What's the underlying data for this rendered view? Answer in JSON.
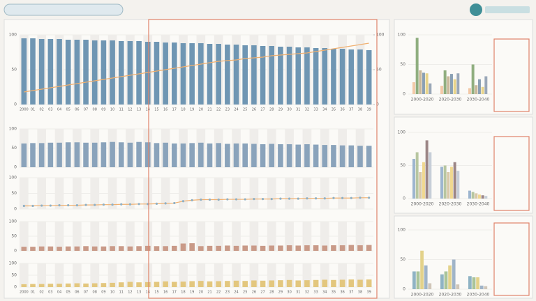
{
  "chart_data": [
    {
      "type": "bar",
      "categories": [
        "2000",
        "01",
        "02",
        "03",
        "04",
        "05",
        "06",
        "07",
        "08",
        "09",
        "10",
        "11",
        "12",
        "13",
        "14",
        "15",
        "16",
        "17",
        "18",
        "19",
        "20",
        "21",
        "22",
        "23",
        "24",
        "25",
        "26",
        "27",
        "28",
        "29",
        "30",
        "31",
        "32",
        "33",
        "34",
        "35",
        "36",
        "37",
        "38",
        "39"
      ],
      "ylim": [
        0,
        100
      ],
      "yticks": [
        0,
        50,
        100
      ],
      "y2lim": [
        0,
        100
      ],
      "y2ticks": [
        0,
        50,
        100
      ],
      "series": [
        {
          "color": "#6f96b3",
          "values": [
            95,
            95,
            94,
            94,
            94,
            93,
            93,
            93,
            92,
            92,
            92,
            91,
            91,
            91,
            90,
            90,
            89,
            89,
            88,
            88,
            88,
            87,
            87,
            86,
            86,
            85,
            85,
            84,
            84,
            83,
            83,
            82,
            82,
            81,
            81,
            80,
            80,
            79,
            79,
            78
          ]
        },
        {
          "color": "#f0b070",
          "axis": "y2",
          "values": [
            18,
            20,
            22,
            24,
            26,
            28,
            30,
            32,
            34,
            36,
            38,
            40,
            42,
            44,
            46,
            48,
            50,
            52,
            54,
            56,
            58,
            60,
            62,
            63,
            64,
            66,
            67,
            68,
            70,
            71,
            72,
            73,
            74,
            76,
            78,
            80,
            82,
            84,
            86,
            88
          ]
        }
      ]
    },
    {
      "type": "bar",
      "ylim": [
        0,
        100
      ],
      "yticks": [
        0,
        50,
        100
      ],
      "series": [
        {
          "color": "#8aa3bb",
          "values": [
            62,
            63,
            63,
            64,
            64,
            65,
            65,
            64,
            64,
            65,
            66,
            65,
            64,
            66,
            65,
            63,
            64,
            62,
            62,
            63,
            64,
            62,
            63,
            61,
            62,
            62,
            61,
            60,
            61,
            60,
            60,
            59,
            60,
            59,
            58,
            58,
            57,
            57,
            56,
            56
          ]
        }
      ]
    },
    {
      "type": "line",
      "ylim": [
        0,
        100
      ],
      "yticks": [
        0,
        50,
        100
      ],
      "series": [
        {
          "color": "#f0b070",
          "values": [
            10,
            10,
            11,
            11,
            12,
            12,
            12,
            13,
            13,
            14,
            14,
            15,
            15,
            16,
            16,
            17,
            18,
            19,
            25,
            28,
            30,
            30,
            30,
            31,
            31,
            31,
            32,
            32,
            32,
            33,
            33,
            33,
            34,
            34,
            34,
            35,
            35,
            35,
            36,
            36
          ]
        }
      ]
    },
    {
      "type": "bar",
      "ylim": [
        0,
        100
      ],
      "yticks": [
        0,
        50,
        100
      ],
      "series": [
        {
          "color": "#c99a88",
          "values": [
            14,
            14,
            15,
            15,
            14,
            15,
            15,
            16,
            15,
            15,
            16,
            16,
            15,
            16,
            17,
            16,
            16,
            17,
            25,
            26,
            16,
            17,
            17,
            18,
            17,
            18,
            18,
            17,
            18,
            18,
            19,
            18,
            19,
            19,
            18,
            19,
            19,
            20,
            19,
            20
          ]
        }
      ]
    },
    {
      "type": "bar",
      "categories": [
        "2000",
        "01",
        "02",
        "03",
        "04",
        "05",
        "06",
        "07",
        "08",
        "09",
        "10",
        "11",
        "12",
        "13",
        "14",
        "15",
        "16",
        "17",
        "18",
        "19",
        "20",
        "21",
        "22",
        "23",
        "24",
        "25",
        "26",
        "27",
        "28",
        "29",
        "30",
        "31",
        "32",
        "33",
        "34",
        "35",
        "36",
        "37",
        "38",
        "39"
      ],
      "ylim": [
        0,
        100
      ],
      "yticks": [
        0,
        50,
        100
      ],
      "series": [
        {
          "color": "#e3c77e",
          "values": [
            12,
            13,
            13,
            14,
            14,
            15,
            16,
            15,
            16,
            17,
            18,
            20,
            22,
            20,
            21,
            22,
            24,
            22,
            23,
            25,
            26,
            24,
            25,
            26,
            27,
            26,
            28,
            27,
            28,
            29,
            30,
            28,
            29,
            30,
            31,
            30,
            31,
            32,
            31,
            32
          ]
        }
      ]
    },
    {
      "type": "grouped",
      "categories": [
        "2000-2020",
        "2020-2030",
        "2030-2040"
      ],
      "ylim": [
        0,
        100
      ],
      "yticks": [
        0,
        50,
        100
      ],
      "series": [
        {
          "color": "#f3c9a8",
          "values": [
            20,
            14,
            10
          ]
        },
        {
          "color": "#8fae7f",
          "values": [
            95,
            40,
            50
          ]
        },
        {
          "color": "#c8b89a",
          "values": [
            40,
            30,
            15
          ]
        },
        {
          "color": "#8aa0b4",
          "values": [
            36,
            34,
            25
          ]
        },
        {
          "color": "#e8d48a",
          "values": [
            35,
            25,
            12
          ]
        },
        {
          "color": "#9aa7b8",
          "values": [
            18,
            35,
            30
          ]
        }
      ]
    },
    {
      "type": "grouped",
      "categories": [
        "2000-2020",
        "2020-2030",
        "2030-2040"
      ],
      "ylim": [
        0,
        100
      ],
      "yticks": [
        0,
        50,
        100
      ],
      "series": [
        {
          "color": "#9db5cf",
          "values": [
            60,
            48,
            12
          ]
        },
        {
          "color": "#b7c6a0",
          "values": [
            70,
            50,
            10
          ]
        },
        {
          "color": "#d8c8a8",
          "values": [
            40,
            40,
            8
          ]
        },
        {
          "color": "#f0d890",
          "values": [
            55,
            48,
            6
          ]
        },
        {
          "color": "#9c8686",
          "values": [
            88,
            55,
            5
          ]
        },
        {
          "color": "#c6ced8",
          "values": [
            70,
            42,
            4
          ]
        }
      ]
    },
    {
      "type": "grouped",
      "categories": [
        "2000-2020",
        "2020-2030",
        "2030-2040"
      ],
      "ylim": [
        0,
        100
      ],
      "yticks": [
        0,
        50,
        100
      ],
      "series": [
        {
          "color": "#8fb3c4",
          "values": [
            30,
            25,
            22
          ]
        },
        {
          "color": "#a9c49a",
          "values": [
            30,
            30,
            20
          ]
        },
        {
          "color": "#e3d28a",
          "values": [
            65,
            40,
            20
          ]
        },
        {
          "color": "#a0b4c8",
          "values": [
            40,
            50,
            6
          ]
        },
        {
          "color": "#d0c6b8",
          "values": [
            10,
            8,
            5
          ]
        }
      ]
    }
  ]
}
